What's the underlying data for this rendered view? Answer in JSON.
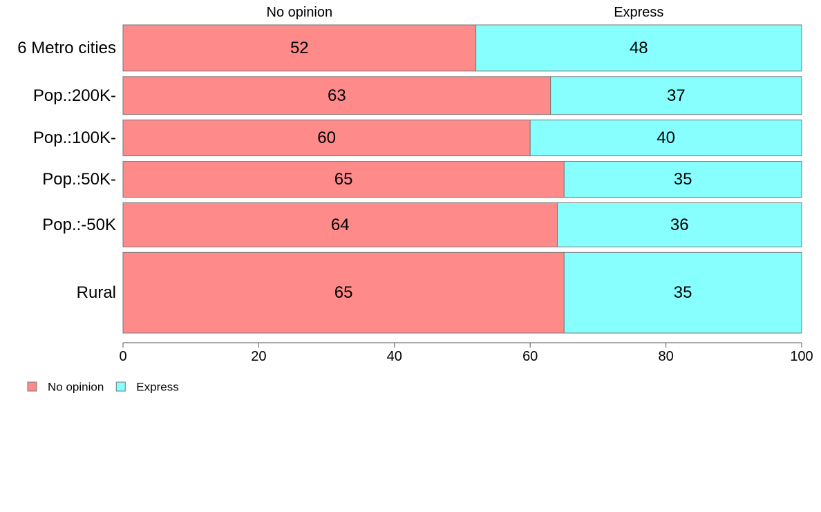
{
  "chart_data": {
    "type": "bar",
    "orientation": "horizontal",
    "stacked": true,
    "normalized_percent": true,
    "categories": [
      "6 Metro cities",
      "Pop.:200K-",
      "Pop.:100K-",
      "Pop.:50K-",
      "Pop.:-50K",
      "Rural"
    ],
    "category_weights": [
      67,
      55,
      52,
      52,
      64,
      117
    ],
    "series": [
      {
        "name": "No opinion",
        "color": "#ff8a8a",
        "values": [
          52,
          63,
          60,
          65,
          64,
          65
        ]
      },
      {
        "name": "Express",
        "color": "#88ffff",
        "values": [
          48,
          37,
          40,
          35,
          36,
          35
        ]
      }
    ],
    "xlim": [
      0,
      100
    ],
    "xticks": [
      0,
      20,
      40,
      60,
      80,
      100
    ],
    "top_labels": [
      "No opinion",
      "Express"
    ],
    "legend": {
      "position": "bottom-left",
      "entries": [
        "No opinion",
        "Express"
      ]
    },
    "grid": false
  }
}
